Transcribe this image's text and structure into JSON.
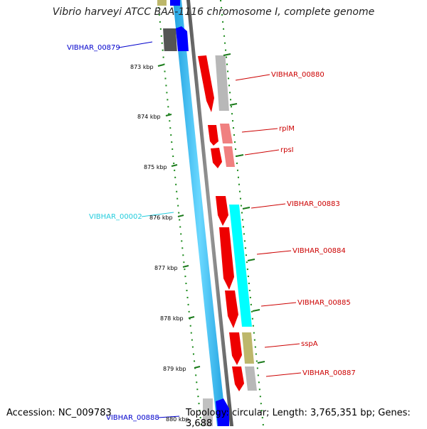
{
  "title": "Vibrio harveyi ATCC BAA-1116 chromosome I, complete genome",
  "footer": {
    "accession": "Accession: NC_009783",
    "topology": "Topology: circular; Length: 3,765,351 bp; Genes: 3,688"
  },
  "colors": {
    "background": "#ffffff",
    "forward_cds": "#ff0000",
    "forward_cds_light": "#f08080",
    "reverse_cds_cyan": "#00ffff",
    "reverse_cds_olive": "#bdb76b",
    "blue_feature": "#0000ff",
    "light_blue_feature": "#33ccff",
    "gray_feature": "#b0b0b0",
    "dark_gray_feature": "#555555",
    "tick_green": "#1a7a1a",
    "label_blue": "#0000cc",
    "label_cyan": "#22ccdd",
    "label_red": "#cc0000"
  },
  "ticks": [
    "873 kbp",
    "874 kbp",
    "875 kbp",
    "876 kbp",
    "877 kbp",
    "878 kbp",
    "879 kbp",
    "880 kbp"
  ],
  "labels": [
    {
      "text": "VIBHAR_00879",
      "color": "blue"
    },
    {
      "text": "VIBHAR_00880",
      "color": "red"
    },
    {
      "text": "rplM",
      "color": "red"
    },
    {
      "text": "rpsI",
      "color": "red"
    },
    {
      "text": "VIBHAR_00002",
      "color": "cyan"
    },
    {
      "text": "VIBHAR_00883",
      "color": "red"
    },
    {
      "text": "VIBHAR_00884",
      "color": "red"
    },
    {
      "text": "VIBHAR_00885",
      "color": "red"
    },
    {
      "text": "sspA",
      "color": "red"
    },
    {
      "text": "VIBHAR_00887",
      "color": "red"
    },
    {
      "text": "VIBHAR_00888",
      "color": "blue"
    }
  ]
}
